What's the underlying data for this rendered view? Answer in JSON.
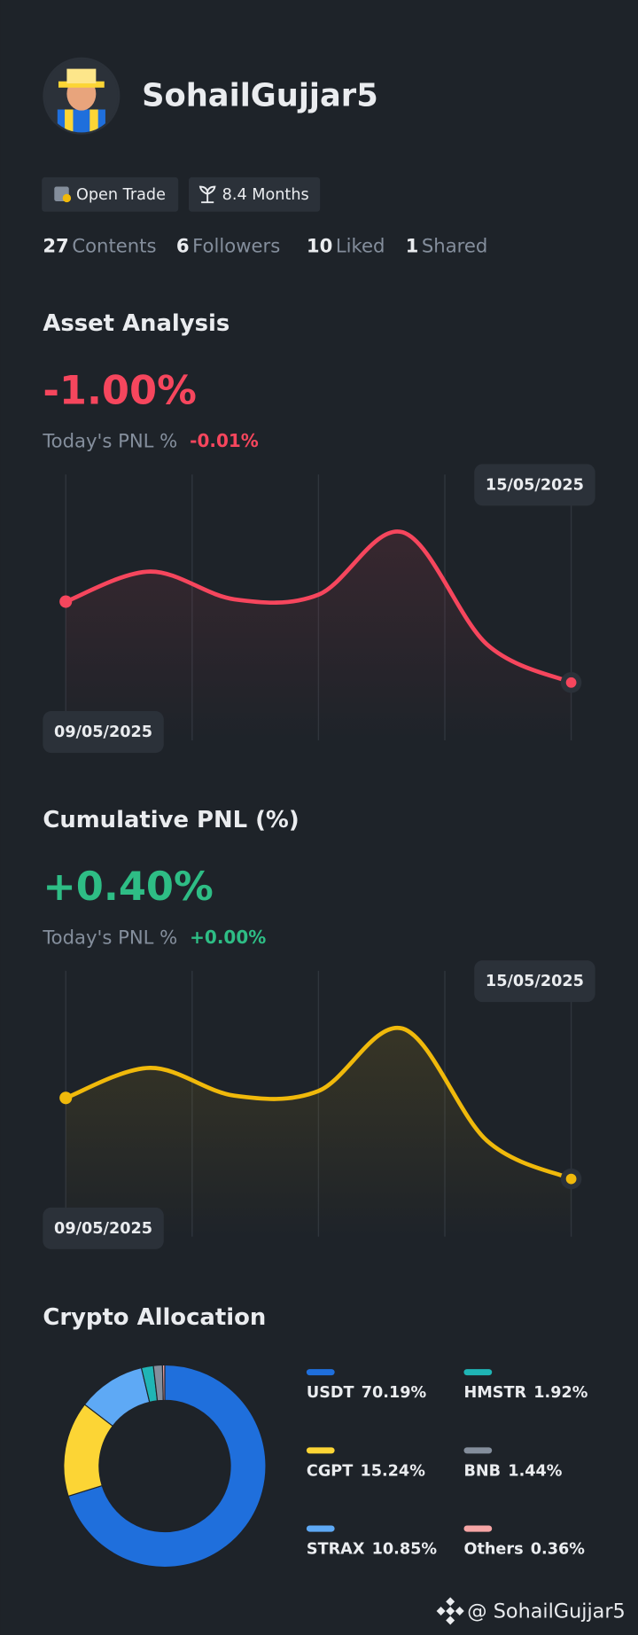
{
  "profile": {
    "username": "SohailGujjar5",
    "badges": [
      "Open Trade",
      "8.4 Months"
    ],
    "stats": [
      {
        "value": 27,
        "label": "Contents"
      },
      {
        "value": 6,
        "label": "Followers"
      },
      {
        "value": 10,
        "label": "Liked"
      },
      {
        "value": 1,
        "label": "Shared"
      }
    ]
  },
  "chart_data": [
    {
      "type": "line",
      "title": "Asset Analysis",
      "headline": "-1.00%",
      "today_label": "Today's PNL %",
      "today_value": "-0.01%",
      "x": [
        "09/05/2025",
        null,
        null,
        null,
        null,
        null,
        "15/05/2025"
      ],
      "values": [
        -0.3,
        -0.04,
        -0.28,
        -0.24,
        0.3,
        -0.67,
        -1.0
      ],
      "color": "#f6465d",
      "ylim": [
        -1.5,
        0.8
      ]
    },
    {
      "type": "line",
      "title": "Cumulative PNL (%)",
      "headline": "+0.40%",
      "today_label": "Today's PNL %",
      "today_value": "+0.00%",
      "x": [
        "09/05/2025",
        null,
        null,
        null,
        null,
        null,
        "15/05/2025"
      ],
      "values": [
        1.1,
        1.36,
        1.12,
        1.16,
        1.7,
        0.73,
        0.4
      ],
      "color": "#f0b90b",
      "ylim": [
        -0.1,
        2.2
      ]
    },
    {
      "type": "donut",
      "title": "Crypto Allocation",
      "categories": [
        "USDT",
        "CGPT",
        "STRAX",
        "HMSTR",
        "BNB",
        "Others"
      ],
      "values": [
        70.19,
        15.24,
        10.85,
        1.92,
        1.44,
        0.36
      ],
      "value_labels": [
        "70.19%",
        "15.24%",
        "10.85%",
        "1.92%",
        "1.44%",
        "0.36%"
      ],
      "colors": [
        "#1f6fdc",
        "#fcd535",
        "#5ea9f5",
        "#1fb5b5",
        "#848e9c",
        "#f6a5a5"
      ]
    }
  ],
  "footer": "@ SohailGujjar5"
}
